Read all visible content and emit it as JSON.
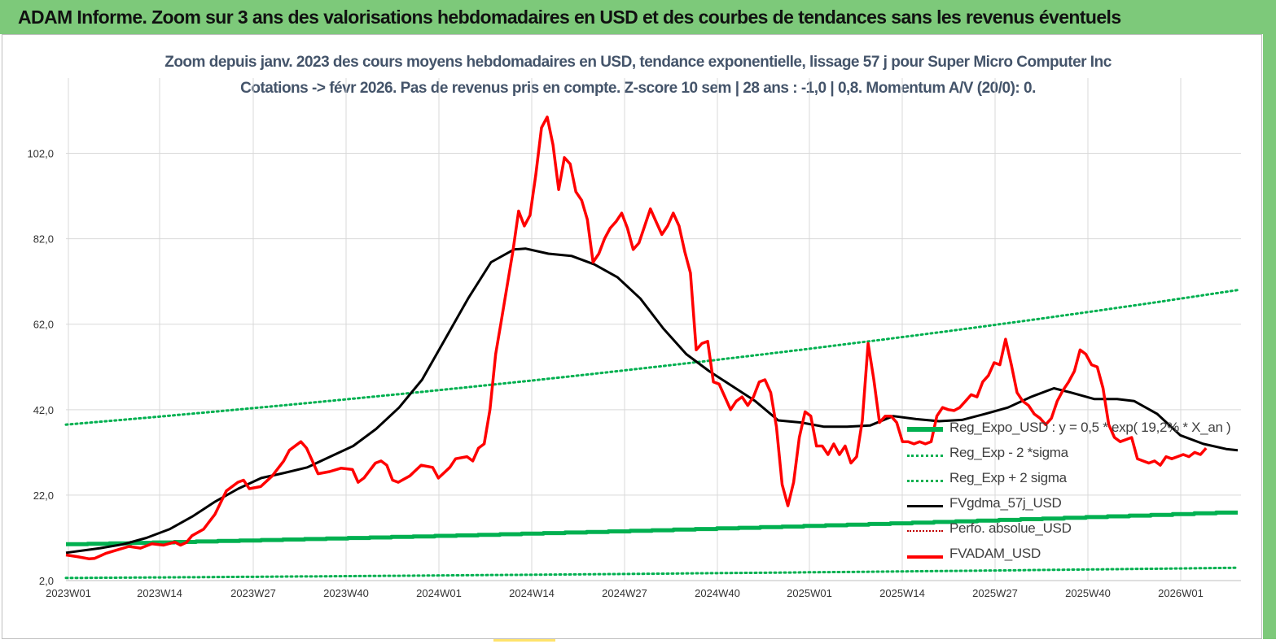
{
  "header": {
    "banner_title": "ADAM Informe. Zoom sur 3 ans des valorisations hebdomadaires en USD et des courbes de tendances sans les revenus éventuels"
  },
  "colors": {
    "banner_bg": "#7dc97a",
    "reg_expo": "#00b050",
    "sigma_bands": "#00b050",
    "fvgdma": "#000000",
    "perfo": "#c00000",
    "fvadam": "#ff0000"
  },
  "chart_data": {
    "type": "line",
    "title": "Zoom depuis janv. 2023 des cours moyens hebdomadaires en USD, tendance exponentielle, lissage 57 j pour Super Micro Computer Inc",
    "subtitle": "Cotations -> févr 2026.  Pas de revenus pris en compte. Z-score 10 sem  | 28 ans : -1,0 | 0,8. Momentum A/V (20/0): 0.",
    "xlabel": "",
    "ylabel": "",
    "ylim": [
      2,
      112
    ],
    "y_ticks": [
      "2,0",
      "22,0",
      "42,0",
      "62,0",
      "82,0",
      "102,0"
    ],
    "y_tick_values": [
      2,
      22,
      42,
      62,
      82,
      102
    ],
    "x_ticks": [
      "2023W01",
      "2023W14",
      "2023W27",
      "2023W40",
      "2024W01",
      "2024W14",
      "2024W27",
      "2024W40",
      "2025W01",
      "2025W14",
      "2025W27",
      "2025W40",
      "2026W01"
    ],
    "x_tick_index": [
      0,
      13,
      26,
      39,
      52,
      65,
      78,
      91,
      104,
      117,
      130,
      143,
      156
    ],
    "n_weeks": 166,
    "grid": "vertical and horizontal",
    "legend_position": "bottom-right",
    "series": [
      {
        "name": "Reg_Expo_USD : y = 0,5  * exp( 19,2% *  X_an )",
        "style": "thick-step",
        "points": [
          [
            0,
            10.5
          ],
          [
            165,
            18.1
          ]
        ]
      },
      {
        "name": "Reg_Exp - 2 *sigma",
        "style": "dotted",
        "points": [
          [
            0,
            2.6
          ],
          [
            165,
            5.0
          ]
        ]
      },
      {
        "name": "Reg_Exp + 2 sigma",
        "style": "dotted",
        "points": [
          [
            0,
            38.5
          ],
          [
            165,
            70.0
          ]
        ]
      },
      {
        "name": "FVgdma_57j_USD",
        "style": "solid",
        "points": [
          [
            0,
            8.5
          ],
          [
            6,
            9.6
          ],
          [
            10,
            10.5
          ],
          [
            14,
            12.0
          ],
          [
            18,
            14.0
          ],
          [
            22,
            17.0
          ],
          [
            26,
            20.5
          ],
          [
            30,
            23.5
          ],
          [
            34,
            26.0
          ],
          [
            38,
            27.2
          ],
          [
            42,
            28.5
          ],
          [
            46,
            31.0
          ],
          [
            50,
            33.5
          ],
          [
            54,
            37.5
          ],
          [
            58,
            42.5
          ],
          [
            62,
            49.0
          ],
          [
            66,
            58.5
          ],
          [
            70,
            68.0
          ],
          [
            74,
            76.5
          ],
          [
            78,
            79.5
          ],
          [
            80,
            79.7
          ],
          [
            84,
            78.5
          ],
          [
            88,
            78.0
          ],
          [
            92,
            76.0
          ],
          [
            96,
            73.0
          ],
          [
            100,
            68.0
          ],
          [
            104,
            61.0
          ],
          [
            108,
            55.0
          ],
          [
            112,
            51.0
          ],
          [
            116,
            47.5
          ],
          [
            120,
            44.0
          ],
          [
            124,
            39.5
          ],
          [
            128,
            39.0
          ],
          [
            132,
            38.0
          ],
          [
            136,
            38.0
          ],
          [
            140,
            38.3
          ],
          [
            144,
            40.5
          ],
          [
            148,
            39.8
          ],
          [
            152,
            39.3
          ],
          [
            156,
            39.6
          ],
          [
            160,
            41.0
          ],
          [
            164,
            42.5
          ],
          [
            168,
            45.0
          ],
          [
            172,
            47.0
          ],
          [
            175,
            46.0
          ],
          [
            179,
            44.5
          ],
          [
            183,
            44.5
          ],
          [
            186,
            44.0
          ],
          [
            190,
            41.0
          ],
          [
            194,
            36.0
          ],
          [
            198,
            34.0
          ],
          [
            202,
            32.8
          ],
          [
            204,
            32.5
          ]
        ]
      },
      {
        "name": "Perfo. absolue_USD",
        "style": "dotted",
        "points": []
      },
      {
        "name": "FVADAM_USD",
        "style": "solid-thick",
        "points": [
          [
            0,
            8.0
          ],
          [
            2,
            7.6
          ],
          [
            4,
            7.1
          ],
          [
            5,
            7.2
          ],
          [
            7,
            8.4
          ],
          [
            9,
            9.2
          ],
          [
            11,
            10.0
          ],
          [
            13,
            9.6
          ],
          [
            15,
            10.6
          ],
          [
            17,
            10.3
          ],
          [
            19,
            11.0
          ],
          [
            20,
            10.3
          ],
          [
            21,
            10.9
          ],
          [
            22,
            12.5
          ],
          [
            24,
            14.0
          ],
          [
            26,
            17.5
          ],
          [
            28,
            23.0
          ],
          [
            30,
            25.0
          ],
          [
            31,
            25.5
          ],
          [
            32,
            23.5
          ],
          [
            34,
            24.0
          ],
          [
            36,
            26.5
          ],
          [
            38,
            30.0
          ],
          [
            39,
            32.5
          ],
          [
            41,
            34.5
          ],
          [
            42,
            33.0
          ],
          [
            43,
            30.0
          ],
          [
            44,
            27.0
          ],
          [
            46,
            27.5
          ],
          [
            48,
            28.3
          ],
          [
            50,
            28.0
          ],
          [
            51,
            25.0
          ],
          [
            52,
            26.0
          ],
          [
            54,
            29.5
          ],
          [
            55,
            30.0
          ],
          [
            56,
            29.0
          ],
          [
            57,
            25.5
          ],
          [
            58,
            25.0
          ],
          [
            60,
            26.5
          ],
          [
            62,
            29.0
          ],
          [
            64,
            28.5
          ],
          [
            65,
            26.0
          ],
          [
            67,
            28.5
          ],
          [
            68,
            30.5
          ],
          [
            70,
            31.0
          ],
          [
            71,
            30.0
          ],
          [
            72,
            33.0
          ],
          [
            73,
            34.0
          ],
          [
            74,
            42.0
          ],
          [
            75,
            55.0
          ],
          [
            76,
            63.0
          ],
          [
            78,
            79.0
          ],
          [
            79,
            88.5
          ],
          [
            80,
            85.0
          ],
          [
            81,
            87.5
          ],
          [
            82,
            97.0
          ],
          [
            83,
            108.0
          ],
          [
            84,
            110.5
          ],
          [
            85,
            104.0
          ],
          [
            86,
            93.5
          ],
          [
            87,
            101.0
          ],
          [
            88,
            99.5
          ],
          [
            89,
            93.0
          ],
          [
            90,
            91.0
          ],
          [
            91,
            86.5
          ],
          [
            92,
            76.5
          ],
          [
            93,
            78.5
          ],
          [
            94,
            82.0
          ],
          [
            95,
            84.5
          ],
          [
            96,
            86.0
          ],
          [
            97,
            88.0
          ],
          [
            98,
            84.5
          ],
          [
            99,
            79.5
          ],
          [
            100,
            81.0
          ],
          [
            101,
            85.0
          ],
          [
            102,
            89.0
          ],
          [
            103,
            86.0
          ],
          [
            104,
            83.0
          ],
          [
            105,
            85.0
          ],
          [
            106,
            88.0
          ],
          [
            107,
            85.0
          ],
          [
            108,
            79.0
          ],
          [
            109,
            74.0
          ],
          [
            110,
            56.0
          ],
          [
            111,
            57.5
          ],
          [
            112,
            58.0
          ],
          [
            113,
            48.5
          ],
          [
            114,
            48.0
          ],
          [
            115,
            45.0
          ],
          [
            116,
            42.0
          ],
          [
            117,
            44.0
          ],
          [
            118,
            45.0
          ],
          [
            119,
            43.0
          ],
          [
            120,
            45.0
          ],
          [
            121,
            48.5
          ],
          [
            122,
            49.0
          ],
          [
            123,
            46.0
          ],
          [
            124,
            38.0
          ],
          [
            125,
            24.5
          ],
          [
            126,
            19.5
          ],
          [
            127,
            25.0
          ],
          [
            128,
            35.5
          ],
          [
            129,
            41.5
          ],
          [
            130,
            40.5
          ],
          [
            131,
            33.5
          ],
          [
            132,
            33.5
          ],
          [
            133,
            31.5
          ],
          [
            134,
            34.0
          ],
          [
            135,
            31.5
          ],
          [
            136,
            33.5
          ],
          [
            137,
            29.5
          ],
          [
            138,
            31.0
          ],
          [
            139,
            39.5
          ],
          [
            140,
            57.5
          ],
          [
            141,
            49.0
          ],
          [
            142,
            39.0
          ],
          [
            143,
            40.5
          ],
          [
            144,
            40.5
          ],
          [
            145,
            39.0
          ],
          [
            146,
            34.5
          ],
          [
            147,
            34.5
          ],
          [
            148,
            34.0
          ],
          [
            149,
            34.5
          ],
          [
            150,
            34.0
          ],
          [
            151,
            34.5
          ],
          [
            152,
            40.5
          ],
          [
            153,
            42.5
          ],
          [
            154,
            42.0
          ],
          [
            155,
            41.8
          ],
          [
            156,
            42.5
          ],
          [
            157,
            44.0
          ],
          [
            158,
            45.5
          ],
          [
            159,
            45.0
          ],
          [
            160,
            48.5
          ],
          [
            161,
            50.0
          ],
          [
            162,
            53.0
          ],
          [
            163,
            52.5
          ],
          [
            164,
            58.5
          ],
          [
            165,
            52.5
          ],
          [
            166,
            46.0
          ],
          [
            167,
            44.0
          ],
          [
            168,
            43.0
          ],
          [
            169,
            41.0
          ],
          [
            170,
            40.0
          ],
          [
            171,
            38.5
          ],
          [
            172,
            40.0
          ],
          [
            173,
            44.0
          ],
          [
            174,
            46.5
          ],
          [
            175,
            48.5
          ],
          [
            176,
            51.0
          ],
          [
            177,
            56.0
          ],
          [
            178,
            55.0
          ],
          [
            179,
            52.5
          ],
          [
            180,
            52.0
          ],
          [
            181,
            47.0
          ],
          [
            182,
            38.5
          ],
          [
            183,
            35.5
          ],
          [
            184,
            34.5
          ],
          [
            185,
            35.0
          ],
          [
            186,
            35.5
          ],
          [
            187,
            30.5
          ],
          [
            188,
            30.0
          ],
          [
            189,
            29.5
          ],
          [
            190,
            30.0
          ],
          [
            191,
            29.0
          ],
          [
            192,
            31.0
          ],
          [
            193,
            30.5
          ],
          [
            194,
            31.0
          ],
          [
            195,
            31.5
          ],
          [
            196,
            31.0
          ],
          [
            197,
            32.0
          ],
          [
            198,
            31.5
          ],
          [
            199,
            33.0
          ]
        ]
      }
    ]
  }
}
